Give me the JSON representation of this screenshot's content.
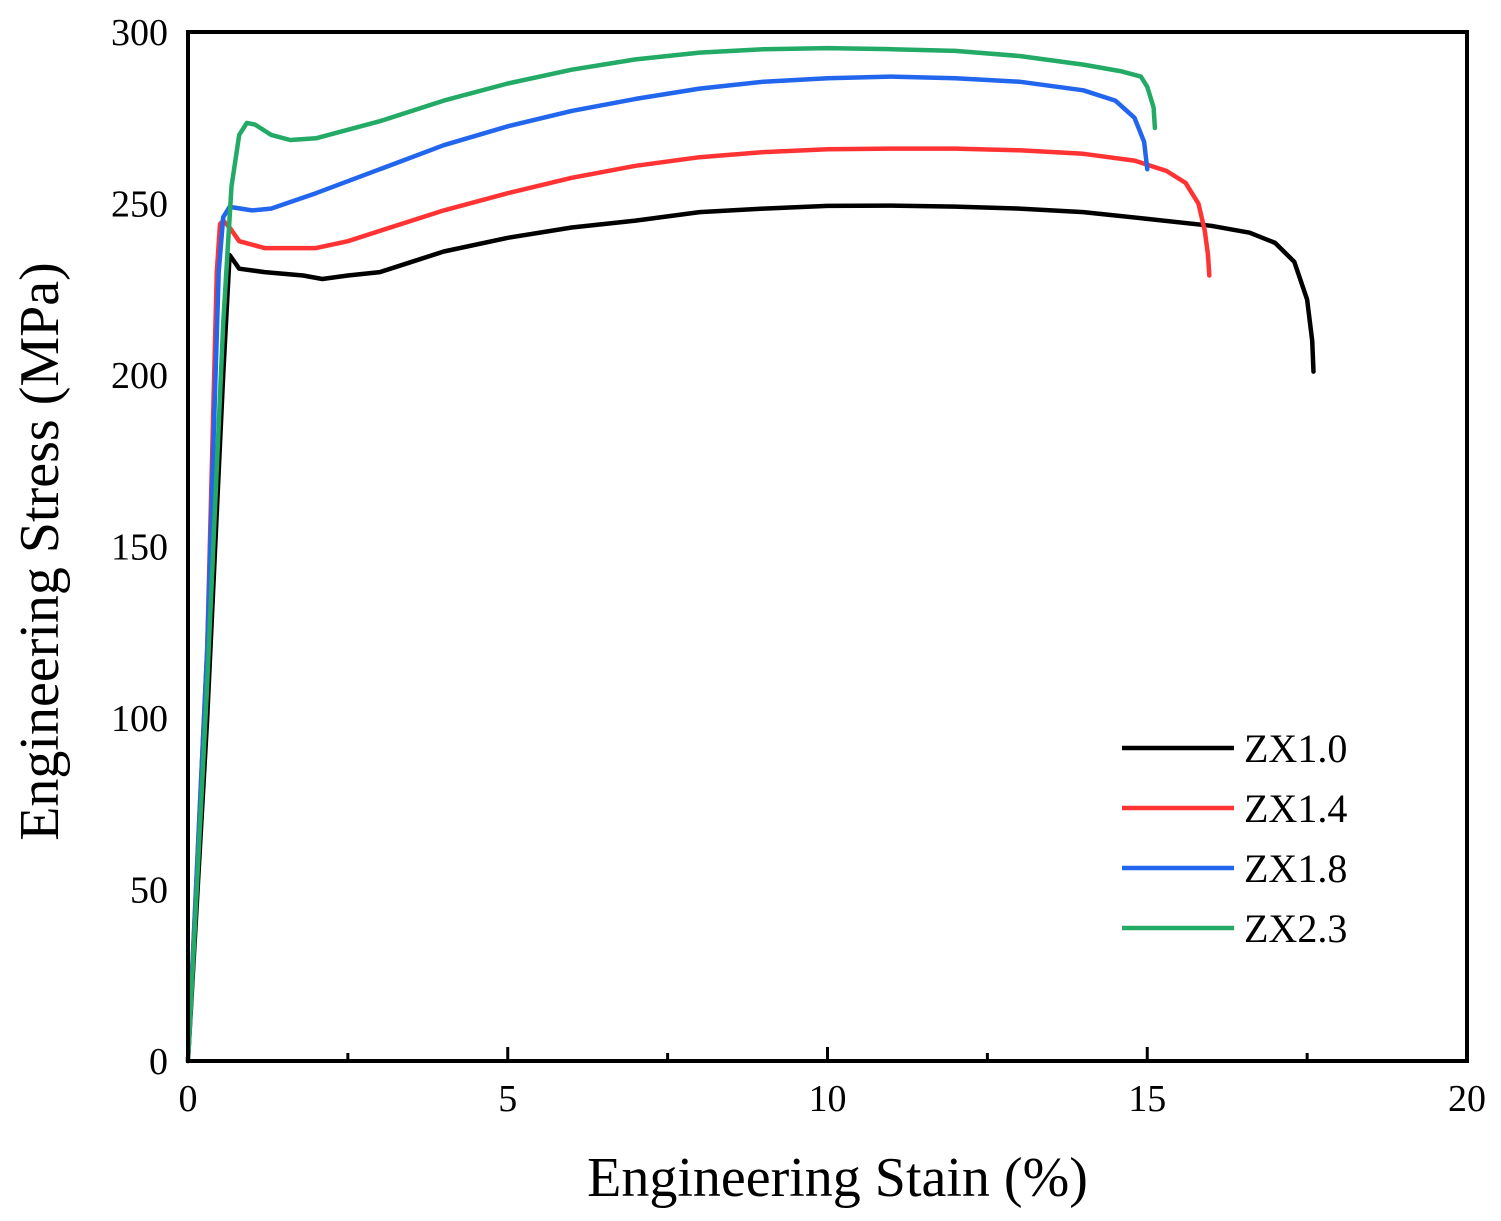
{
  "chart_data": {
    "type": "line",
    "title": "",
    "xlabel": "Engineering Stain (%)",
    "ylabel": "Engineering Stress (MPa)",
    "xlim": [
      0,
      20
    ],
    "ylim": [
      0,
      300
    ],
    "x_ticks": [
      0,
      5,
      10,
      15,
      20
    ],
    "y_ticks": [
      0,
      50,
      100,
      150,
      200,
      250,
      300
    ],
    "x_tick_labels": [
      "0",
      "5",
      "10",
      "15",
      "20"
    ],
    "y_tick_labels": [
      "0",
      "50",
      "100",
      "150",
      "200",
      "250",
      "300"
    ],
    "grid": false,
    "legend_position": "bottom-right",
    "series": [
      {
        "name": "ZX1.0",
        "color": "#000000",
        "points": [
          [
            0,
            0
          ],
          [
            0.3,
            100
          ],
          [
            0.55,
            200
          ],
          [
            0.65,
            235
          ],
          [
            0.8,
            231
          ],
          [
            1.2,
            230
          ],
          [
            1.8,
            229
          ],
          [
            2.1,
            228
          ],
          [
            2.5,
            229
          ],
          [
            3.0,
            230
          ],
          [
            3.5,
            233
          ],
          [
            4.0,
            236
          ],
          [
            5.0,
            240
          ],
          [
            6.0,
            243
          ],
          [
            7.0,
            245
          ],
          [
            8.0,
            247.5
          ],
          [
            9.0,
            248.5
          ],
          [
            10.0,
            249.3
          ],
          [
            11.0,
            249.4
          ],
          [
            12.0,
            249.1
          ],
          [
            13.0,
            248.5
          ],
          [
            14.0,
            247.5
          ],
          [
            15.0,
            245.5
          ],
          [
            16.0,
            243.5
          ],
          [
            16.6,
            241.5
          ],
          [
            17.0,
            238.5
          ],
          [
            17.3,
            233
          ],
          [
            17.5,
            222
          ],
          [
            17.58,
            210
          ],
          [
            17.6,
            201
          ]
        ]
      },
      {
        "name": "ZX1.4",
        "color": "#ff3333",
        "points": [
          [
            0,
            0
          ],
          [
            0.3,
            120
          ],
          [
            0.45,
            230
          ],
          [
            0.5,
            244
          ],
          [
            0.55,
            245
          ],
          [
            0.65,
            243
          ],
          [
            0.8,
            239
          ],
          [
            1.2,
            237
          ],
          [
            2.0,
            237
          ],
          [
            2.5,
            239
          ],
          [
            3.0,
            242
          ],
          [
            4.0,
            248
          ],
          [
            5.0,
            253
          ],
          [
            6.0,
            257.5
          ],
          [
            7.0,
            261
          ],
          [
            8.0,
            263.5
          ],
          [
            9.0,
            265
          ],
          [
            10.0,
            265.8
          ],
          [
            11.0,
            266
          ],
          [
            12.0,
            266
          ],
          [
            13.0,
            265.5
          ],
          [
            14.0,
            264.5
          ],
          [
            14.8,
            262.5
          ],
          [
            15.3,
            259.5
          ],
          [
            15.6,
            256
          ],
          [
            15.8,
            250
          ],
          [
            15.9,
            242
          ],
          [
            15.95,
            235
          ],
          [
            15.97,
            229
          ]
        ]
      },
      {
        "name": "ZX1.8",
        "color": "#2266ee",
        "points": [
          [
            0,
            0
          ],
          [
            0.3,
            120
          ],
          [
            0.48,
            230
          ],
          [
            0.55,
            246
          ],
          [
            0.65,
            249
          ],
          [
            1.0,
            248
          ],
          [
            1.3,
            248.5
          ],
          [
            2.0,
            253
          ],
          [
            3.0,
            260
          ],
          [
            4.0,
            267
          ],
          [
            5.0,
            272.5
          ],
          [
            6.0,
            277
          ],
          [
            7.0,
            280.5
          ],
          [
            8.0,
            283.5
          ],
          [
            9.0,
            285.5
          ],
          [
            10.0,
            286.5
          ],
          [
            11.0,
            287
          ],
          [
            12.0,
            286.5
          ],
          [
            13.0,
            285.5
          ],
          [
            14.0,
            283
          ],
          [
            14.5,
            280
          ],
          [
            14.8,
            275
          ],
          [
            14.95,
            268
          ],
          [
            15.0,
            260
          ]
        ]
      },
      {
        "name": "ZX2.3",
        "color": "#22aa66",
        "points": [
          [
            0,
            0
          ],
          [
            0.3,
            110
          ],
          [
            0.55,
            215
          ],
          [
            0.68,
            255
          ],
          [
            0.8,
            270
          ],
          [
            0.92,
            273.5
          ],
          [
            1.05,
            273
          ],
          [
            1.3,
            270
          ],
          [
            1.6,
            268.5
          ],
          [
            2.0,
            269
          ],
          [
            3.0,
            274
          ],
          [
            4.0,
            280
          ],
          [
            5.0,
            285
          ],
          [
            6.0,
            289
          ],
          [
            7.0,
            292
          ],
          [
            8.0,
            294
          ],
          [
            9.0,
            295
          ],
          [
            10.0,
            295.3
          ],
          [
            11.0,
            295
          ],
          [
            12.0,
            294.5
          ],
          [
            13.0,
            293
          ],
          [
            14.0,
            290.5
          ],
          [
            14.6,
            288.5
          ],
          [
            14.9,
            287
          ],
          [
            15.0,
            284
          ],
          [
            15.1,
            278
          ],
          [
            15.12,
            272
          ]
        ]
      }
    ]
  }
}
